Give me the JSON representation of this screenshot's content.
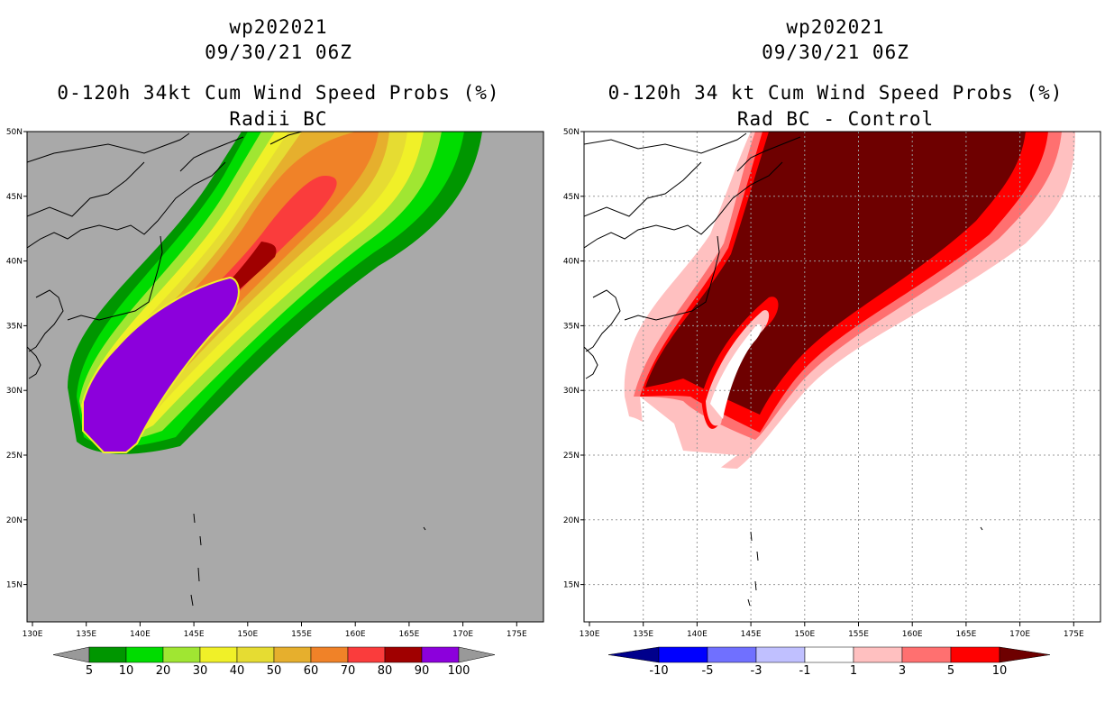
{
  "left_panel": {
    "title_id": "wp202021",
    "title_date": "09/30/21 06Z",
    "title_main": "0-120h 34kt Cum Wind Speed Probs (%)",
    "title_sub": "Radii BC",
    "lon_labels": [
      "130E",
      "135E",
      "140E",
      "145E",
      "150E",
      "155E",
      "160E",
      "165E",
      "170E",
      "175E"
    ],
    "lat_labels": [
      "50N",
      "45N",
      "40N",
      "35N",
      "30N",
      "25N",
      "20N",
      "15N"
    ],
    "colorbar": {
      "labels": [
        "5",
        "10",
        "20",
        "30",
        "40",
        "50",
        "60",
        "70",
        "80",
        "90",
        "100"
      ],
      "colors": [
        "#009600",
        "#00dc00",
        "#a0e632",
        "#f0f028",
        "#e6dc32",
        "#e6af2d",
        "#f08228",
        "#fa3c3c",
        "#a00000",
        "#8c00dc"
      ],
      "under_color": "#999999",
      "over_color": "#999999"
    },
    "background_color": "#a9a9a9"
  },
  "right_panel": {
    "title_id": "wp202021",
    "title_date": "09/30/21 06Z",
    "title_main": "0-120h 34 kt Cum Wind Speed Probs (%)",
    "title_sub": "Rad BC - Control",
    "lon_labels": [
      "130E",
      "135E",
      "140E",
      "145E",
      "150E",
      "155E",
      "160E",
      "165E",
      "170E",
      "175E"
    ],
    "lat_labels": [
      "50N",
      "45N",
      "40N",
      "35N",
      "30N",
      "25N",
      "20N",
      "15N"
    ],
    "colorbar": {
      "labels": [
        "-10",
        "-5",
        "-3",
        "-1",
        "1",
        "3",
        "5",
        "10"
      ],
      "colors": [
        "#0000ff",
        "#7070ff",
        "#c0c0ff",
        "#ffffff",
        "#ffc0c0",
        "#ff7070",
        "#ff0000"
      ],
      "under_color": "#00008c",
      "over_color": "#6e0000"
    },
    "background_color": "#ffffff"
  }
}
